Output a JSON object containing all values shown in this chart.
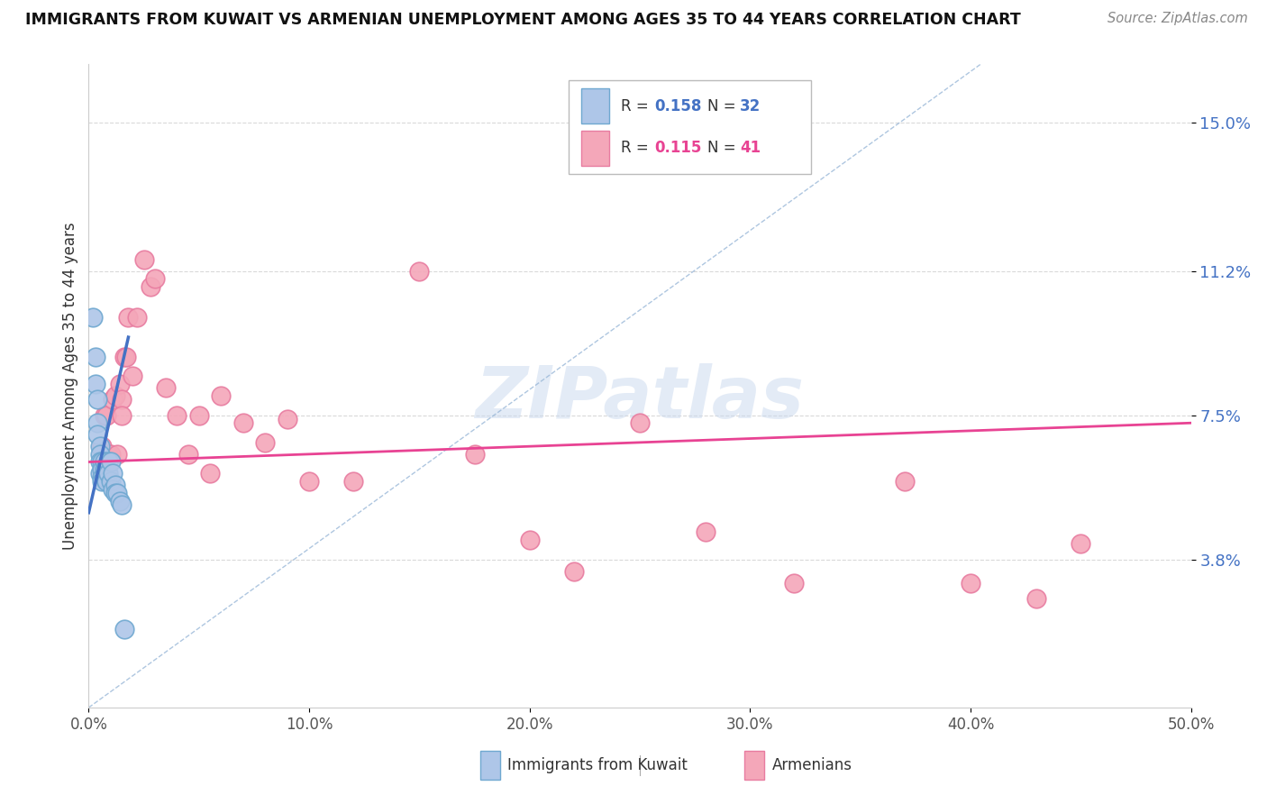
{
  "title": "IMMIGRANTS FROM KUWAIT VS ARMENIAN UNEMPLOYMENT AMONG AGES 35 TO 44 YEARS CORRELATION CHART",
  "source": "Source: ZipAtlas.com",
  "ylabel": "Unemployment Among Ages 35 to 44 years",
  "xlabel_ticks": [
    "0.0%",
    "10.0%",
    "20.0%",
    "30.0%",
    "40.0%",
    "50.0%"
  ],
  "xlabel_vals": [
    0.0,
    0.1,
    0.2,
    0.3,
    0.4,
    0.5
  ],
  "ytick_labels": [
    "3.8%",
    "7.5%",
    "11.2%",
    "15.0%"
  ],
  "ytick_vals": [
    0.038,
    0.075,
    0.112,
    0.15
  ],
  "xlim": [
    0.0,
    0.5
  ],
  "ylim": [
    0.0,
    0.165
  ],
  "watermark": "ZIPatlas",
  "kuwait_color": "#aec6e8",
  "armenian_color": "#f4a7b9",
  "kuwait_edge_color": "#6fa8d0",
  "armenian_edge_color": "#e87ca0",
  "trendline_kuwait_color": "#4472c4",
  "trendline_armenian_color": "#e84393",
  "dashed_line_color": "#9ab8d8",
  "kuwait_points_x": [
    0.002,
    0.003,
    0.003,
    0.004,
    0.004,
    0.004,
    0.005,
    0.005,
    0.005,
    0.005,
    0.006,
    0.006,
    0.006,
    0.006,
    0.007,
    0.007,
    0.007,
    0.008,
    0.008,
    0.008,
    0.009,
    0.009,
    0.01,
    0.01,
    0.011,
    0.011,
    0.012,
    0.012,
    0.013,
    0.014,
    0.015,
    0.016
  ],
  "kuwait_points_y": [
    0.1,
    0.09,
    0.083,
    0.079,
    0.073,
    0.07,
    0.067,
    0.065,
    0.063,
    0.06,
    0.063,
    0.061,
    0.059,
    0.058,
    0.063,
    0.061,
    0.059,
    0.062,
    0.06,
    0.058,
    0.063,
    0.06,
    0.063,
    0.058,
    0.06,
    0.056,
    0.057,
    0.055,
    0.055,
    0.053,
    0.052,
    0.02
  ],
  "armenian_points_x": [
    0.006,
    0.007,
    0.008,
    0.009,
    0.01,
    0.011,
    0.012,
    0.013,
    0.014,
    0.015,
    0.015,
    0.016,
    0.017,
    0.018,
    0.02,
    0.022,
    0.025,
    0.028,
    0.03,
    0.035,
    0.04,
    0.045,
    0.05,
    0.055,
    0.06,
    0.07,
    0.08,
    0.09,
    0.1,
    0.12,
    0.15,
    0.175,
    0.2,
    0.22,
    0.25,
    0.28,
    0.32,
    0.37,
    0.4,
    0.43,
    0.45
  ],
  "armenian_points_y": [
    0.067,
    0.075,
    0.075,
    0.065,
    0.065,
    0.079,
    0.08,
    0.065,
    0.083,
    0.079,
    0.075,
    0.09,
    0.09,
    0.1,
    0.085,
    0.1,
    0.115,
    0.108,
    0.11,
    0.082,
    0.075,
    0.065,
    0.075,
    0.06,
    0.08,
    0.073,
    0.068,
    0.074,
    0.058,
    0.058,
    0.112,
    0.065,
    0.043,
    0.035,
    0.073,
    0.045,
    0.032,
    0.058,
    0.032,
    0.028,
    0.042
  ],
  "legend_r1": "0.158",
  "legend_n1": "32",
  "legend_r2": "0.115",
  "legend_n2": "41",
  "legend_color1": "#4472c4",
  "legend_color2": "#e84393",
  "background_color": "#ffffff",
  "grid_color": "#d0d0d0"
}
